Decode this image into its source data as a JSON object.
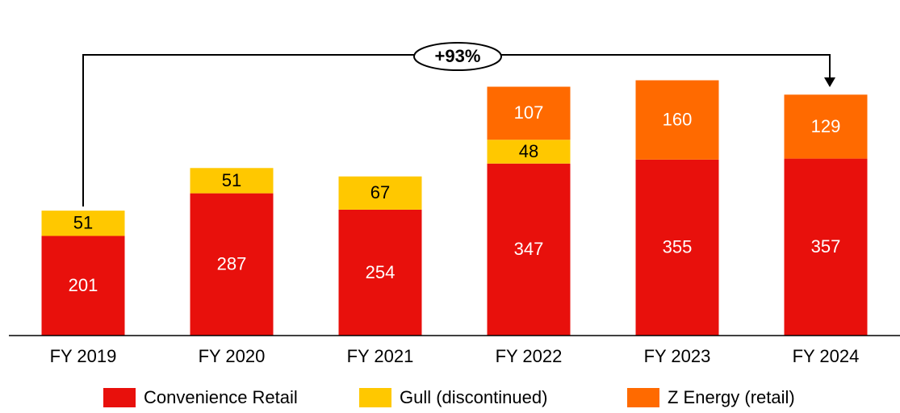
{
  "chart_data": {
    "type": "stacked_bar",
    "categories": [
      "FY 2019",
      "FY 2020",
      "FY 2021",
      "FY 2022",
      "FY 2023",
      "FY 2024"
    ],
    "series": [
      {
        "name": "Convenience Retail",
        "color": "#e8100c",
        "label_color": "#ffffff",
        "values": [
          201,
          287,
          254,
          347,
          355,
          357
        ]
      },
      {
        "name": "Gull (discontinued)",
        "color": "#ffc800",
        "label_color": "#000000",
        "values": [
          51,
          51,
          67,
          48,
          null,
          null
        ]
      },
      {
        "name": "Z Energy (retail)",
        "color": "#ff6a00",
        "label_color": "#ffffff",
        "values": [
          null,
          null,
          null,
          107,
          160,
          129
        ]
      }
    ],
    "ylim": [
      0,
      550
    ],
    "annotation": "+93%",
    "legend": "bottom"
  }
}
